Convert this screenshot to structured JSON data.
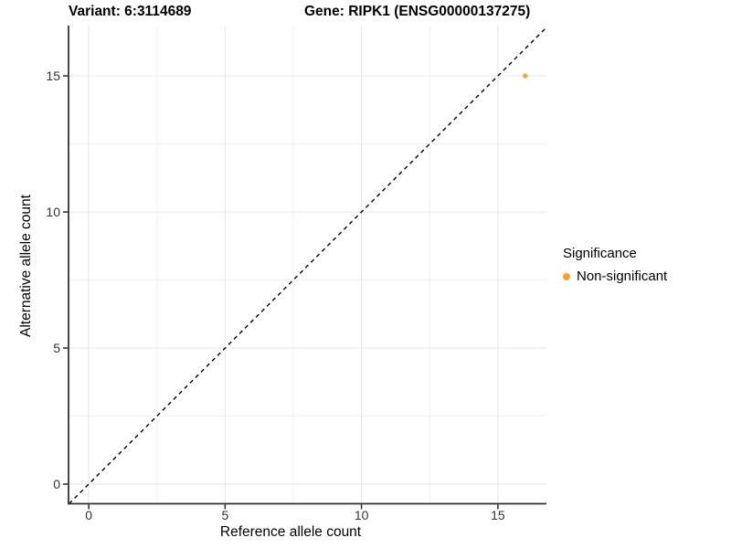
{
  "chart_data": {
    "type": "scatter",
    "title_left": "Variant: 6:3114689",
    "title_right": "Gene: RIPK1 (ENSG00000137275)",
    "xlabel": "Reference allele count",
    "ylabel": "Alternative allele count",
    "xlim": [
      -0.74,
      16.78
    ],
    "ylim": [
      -0.72,
      16.85
    ],
    "x_ticks": [
      0,
      5,
      10,
      15
    ],
    "y_ticks": [
      0,
      5,
      10,
      15
    ],
    "x_minor_ticks": [
      2.5,
      7.5,
      12.5
    ],
    "y_minor_ticks": [
      2.5,
      7.5,
      12.5
    ],
    "grid": "major+minor",
    "reference_line": {
      "type": "identity",
      "style": "dashed",
      "color": "#000000"
    },
    "series": [
      {
        "name": "Non-significant",
        "color": "#F9A029",
        "points": [
          {
            "x": 16,
            "y": 15
          }
        ]
      }
    ],
    "legend": {
      "title": "Significance",
      "position": "right",
      "entries": [
        {
          "label": "Non-significant",
          "color": "#F9A029",
          "marker": "circle"
        }
      ]
    }
  },
  "style": {
    "background": "#FFFFFF",
    "grid_major_color": "#E6E6E6",
    "grid_minor_color": "#F1F1F1",
    "axis_line_color": "#333333",
    "tick_label_color": "#333333",
    "title_color": "#000000",
    "point_color": "#F9A029"
  }
}
